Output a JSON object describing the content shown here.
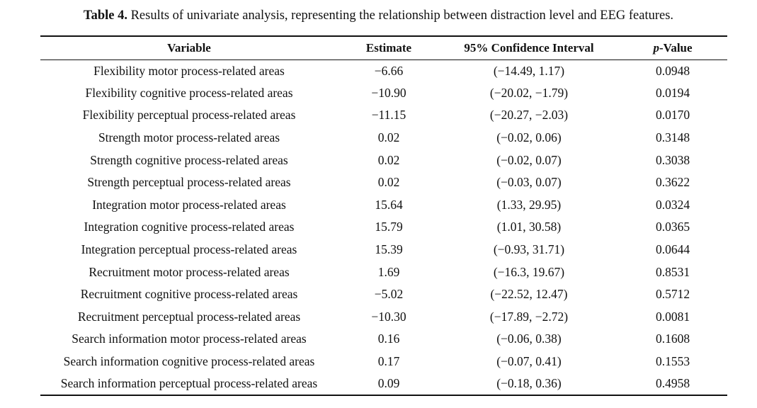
{
  "caption": {
    "label": "Table 4.",
    "text": " Results of univariate analysis, representing the relationship between distraction level and EEG features."
  },
  "headers": {
    "variable": "Variable",
    "estimate": "Estimate",
    "ci": "95% Confidence Interval",
    "p_prefix": "p",
    "p_suffix": "-Value"
  },
  "rows": [
    {
      "variable": "Flexibility motor process-related areas",
      "estimate": "−6.66",
      "ci": "(−14.49, 1.17)",
      "p": "0.0948"
    },
    {
      "variable": "Flexibility cognitive process-related areas",
      "estimate": "−10.90",
      "ci": "(−20.02, −1.79)",
      "p": "0.0194"
    },
    {
      "variable": "Flexibility perceptual process-related areas",
      "estimate": "−11.15",
      "ci": "(−20.27, −2.03)",
      "p": "0.0170"
    },
    {
      "variable": "Strength motor process-related areas",
      "estimate": "0.02",
      "ci": "(−0.02, 0.06)",
      "p": "0.3148"
    },
    {
      "variable": "Strength cognitive process-related areas",
      "estimate": "0.02",
      "ci": "(−0.02, 0.07)",
      "p": "0.3038"
    },
    {
      "variable": "Strength perceptual process-related areas",
      "estimate": "0.02",
      "ci": "(−0.03, 0.07)",
      "p": "0.3622"
    },
    {
      "variable": "Integration motor process-related areas",
      "estimate": "15.64",
      "ci": "(1.33, 29.95)",
      "p": "0.0324"
    },
    {
      "variable": "Integration cognitive process-related areas",
      "estimate": "15.79",
      "ci": "(1.01, 30.58)",
      "p": "0.0365"
    },
    {
      "variable": "Integration perceptual process-related areas",
      "estimate": "15.39",
      "ci": "(−0.93, 31.71)",
      "p": "0.0644"
    },
    {
      "variable": "Recruitment motor process-related areas",
      "estimate": "1.69",
      "ci": "(−16.3, 19.67)",
      "p": "0.8531"
    },
    {
      "variable": "Recruitment cognitive process-related areas",
      "estimate": "−5.02",
      "ci": "(−22.52, 12.47)",
      "p": "0.5712"
    },
    {
      "variable": "Recruitment perceptual process-related areas",
      "estimate": "−10.30",
      "ci": "(−17.89, −2.72)",
      "p": "0.0081"
    },
    {
      "variable": "Search information motor process-related areas",
      "estimate": "0.16",
      "ci": "(−0.06, 0.38)",
      "p": "0.1608"
    },
    {
      "variable": "Search information cognitive process-related areas",
      "estimate": "0.17",
      "ci": "(−0.07, 0.41)",
      "p": "0.1553"
    },
    {
      "variable": "Search information perceptual process-related areas",
      "estimate": "0.09",
      "ci": "(−0.18, 0.36)",
      "p": "0.4958"
    }
  ]
}
